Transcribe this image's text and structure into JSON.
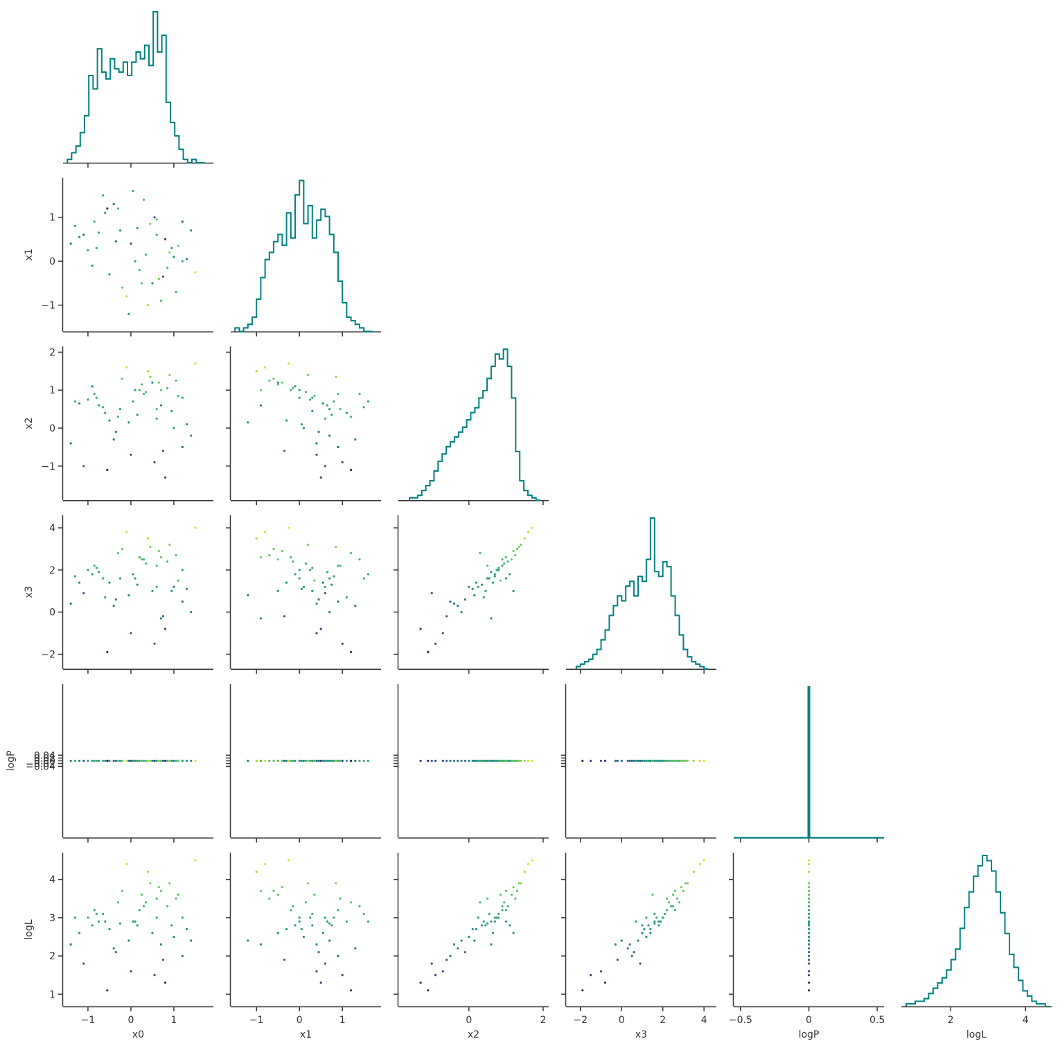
{
  "chart_data": {
    "type": "corner",
    "hist_color": "#008080",
    "colormap": [
      "#440154",
      "#3b528b",
      "#21918c",
      "#5ec962",
      "#fde725"
    ],
    "color_by": "logL",
    "variables": [
      {
        "name": "x0",
        "lim": [
          -1.58,
          1.92
        ],
        "xticks": [
          {
            "value": -1,
            "label": "−1"
          },
          0,
          1
        ],
        "yticks": [],
        "hist": {
          "bins": [
            -1.48,
            -1.38,
            -1.28,
            -1.18,
            -1.08,
            -0.98,
            -0.88,
            -0.78,
            -0.68,
            -0.58,
            -0.48,
            -0.38,
            -0.28,
            -0.18,
            -0.08,
            0.02,
            0.12,
            0.22,
            0.32,
            0.42,
            0.52,
            0.62,
            0.72,
            0.82,
            0.92,
            1.02,
            1.12,
            1.22,
            1.32,
            1.42,
            1.52,
            1.62,
            1.72
          ],
          "counts": [
            1,
            3,
            5,
            9,
            14,
            26,
            22,
            34,
            27,
            25,
            31,
            28,
            27,
            30,
            26,
            30,
            33,
            31,
            35,
            29,
            45,
            33,
            38,
            18,
            12,
            8,
            4,
            1,
            0,
            1,
            0,
            0
          ]
        },
        "values": [
          -0.8,
          0.5,
          1.2,
          -0.3,
          0.1,
          0.7,
          -1.1,
          0.9,
          -0.5,
          0.3,
          1.4,
          -0.9,
          0.6,
          0.0,
          -0.2,
          1.0,
          -1.3,
          0.4,
          0.8,
          -0.6,
          0.2,
          1.1,
          -0.4,
          0.65,
          -0.75,
          1.3,
          -0.1,
          0.55,
          -1.0,
          0.85,
          0.15,
          -0.35,
          1.05,
          -0.65,
          0.35,
          0.75,
          -1.2,
          0.45,
          -0.05,
          1.2,
          -0.55,
          0.25,
          0.95,
          -0.85,
          0.6,
          1.5,
          -1.4,
          0.05,
          0.7,
          -0.25
        ]
      },
      {
        "name": "x1",
        "lim": [
          -1.6,
          1.9
        ],
        "xticks": [
          {
            "value": -1,
            "label": "−1"
          },
          0,
          1
        ],
        "yticks": [
          {
            "value": -1,
            "label": "−1"
          },
          0,
          1
        ],
        "hist": {
          "bins": [
            -1.5,
            -1.4,
            -1.3,
            -1.2,
            -1.1,
            -1.0,
            -0.9,
            -0.8,
            -0.7,
            -0.6,
            -0.5,
            -0.4,
            -0.3,
            -0.2,
            -0.1,
            0.0,
            0.1,
            0.2,
            0.3,
            0.4,
            0.5,
            0.6,
            0.7,
            0.8,
            0.9,
            1.0,
            1.1,
            1.2,
            1.3,
            1.4,
            1.5,
            1.6,
            1.7
          ],
          "counts": [
            1,
            0,
            1,
            2,
            4,
            9,
            15,
            20,
            22,
            25,
            27,
            24,
            33,
            26,
            38,
            42,
            30,
            35,
            26,
            31,
            34,
            32,
            27,
            22,
            14,
            8,
            4,
            3,
            2,
            1,
            0,
            0
          ]
        },
        "values": [
          0.3,
          -0.5,
          0.9,
          1.2,
          0.0,
          -0.9,
          0.6,
          0.2,
          -0.3,
          1.4,
          0.7,
          -0.1,
          0.95,
          0.4,
          -0.6,
          0.1,
          0.8,
          -1.0,
          0.5,
          1.1,
          -0.2,
          0.35,
          1.3,
          -0.4,
          0.65,
          0.05,
          -0.8,
          1.0,
          0.25,
          -0.15,
          0.75,
          0.45,
          -0.7,
          1.5,
          0.15,
          -0.35,
          0.55,
          0.85,
          -1.2,
          0.0,
          1.2,
          -0.5,
          0.3,
          0.9,
          0.6,
          -0.25,
          0.4,
          1.6,
          -0.9,
          0.7
        ]
      },
      {
        "name": "x2",
        "lim": [
          -1.9,
          2.15
        ],
        "xticks": [
          0,
          2
        ],
        "yticks": [
          {
            "value": -1,
            "label": "−1"
          },
          0,
          1,
          2
        ],
        "hist": {
          "bins": [
            -1.6,
            -1.49,
            -1.38,
            -1.27,
            -1.16,
            -1.05,
            -0.94,
            -0.83,
            -0.72,
            -0.61,
            -0.5,
            -0.39,
            -0.28,
            -0.17,
            -0.06,
            0.05,
            0.16,
            0.27,
            0.38,
            0.49,
            0.6,
            0.71,
            0.82,
            0.93,
            1.04,
            1.15,
            1.26,
            1.37,
            1.48,
            1.59,
            1.7,
            1.81,
            1.92
          ],
          "counts": [
            1,
            1,
            2,
            4,
            6,
            8,
            12,
            16,
            19,
            22,
            24,
            26,
            28,
            30,
            33,
            36,
            38,
            42,
            45,
            50,
            55,
            60,
            58,
            62,
            55,
            42,
            20,
            8,
            4,
            2,
            1,
            0
          ]
        },
        "values": [
          0.8,
          1.2,
          -0.5,
          0.3,
          1.0,
          0.6,
          -1.0,
          1.4,
          0.2,
          0.9,
          -0.2,
          1.1,
          0.5,
          -0.7,
          1.3,
          0.0,
          0.7,
          1.5,
          -1.3,
          0.4,
          1.0,
          0.85,
          -0.3,
          1.2,
          0.6,
          0.1,
          1.6,
          -0.9,
          0.75,
          1.05,
          0.35,
          -0.1,
          1.25,
          0.55,
          0.95,
          -0.6,
          0.65,
          1.35,
          0.15,
          0.8,
          -1.1,
          1.15,
          0.45,
          0.9,
          0.25,
          1.7,
          -0.4,
          0.7,
          1.0,
          0.5
        ]
      },
      {
        "name": "x3",
        "lim": [
          -2.7,
          4.6
        ],
        "xticks": [
          {
            "value": -2,
            "label": "−2"
          },
          0,
          2,
          4
        ],
        "yticks": [
          {
            "value": -2,
            "label": "−2"
          },
          0,
          2,
          4
        ],
        "hist": {
          "bins": [
            -2.2,
            -2.0,
            -1.8,
            -1.6,
            -1.4,
            -1.2,
            -1.0,
            -0.8,
            -0.6,
            -0.4,
            -0.2,
            0.0,
            0.2,
            0.4,
            0.6,
            0.8,
            1.0,
            1.2,
            1.4,
            1.6,
            1.8,
            2.0,
            2.2,
            2.4,
            2.6,
            2.8,
            3.0,
            3.2,
            3.4,
            3.6,
            3.8,
            4.0,
            4.2
          ],
          "counts": [
            1,
            2,
            3,
            4,
            6,
            8,
            12,
            16,
            22,
            26,
            30,
            28,
            34,
            36,
            30,
            38,
            36,
            45,
            62,
            40,
            38,
            44,
            42,
            30,
            22,
            14,
            8,
            5,
            3,
            2,
            1,
            0
          ]
        },
        "values": [
          2.1,
          1.0,
          0.5,
          2.8,
          1.6,
          -0.3,
          0.9,
          3.2,
          1.4,
          2.5,
          0.0,
          1.8,
          2.2,
          -1.0,
          3.0,
          1.2,
          1.7,
          3.5,
          -0.8,
          0.7,
          2.6,
          1.5,
          0.3,
          2.9,
          1.9,
          1.1,
          3.8,
          -1.5,
          2.0,
          2.4,
          1.3,
          0.6,
          2.7,
          1.6,
          2.3,
          -0.2,
          1.4,
          3.1,
          0.8,
          2.0,
          -1.9,
          2.5,
          1.0,
          2.2,
          1.2,
          4.0,
          0.4,
          1.8,
          2.6,
          1.6
        ]
      },
      {
        "name": "logP",
        "lim": [
          -0.55,
          0.55
        ],
        "xticks": [
          {
            "value": -0.5,
            "label": "−0.5"
          },
          0.0,
          0.5
        ],
        "yticks": [
          {
            "value": -0.04,
            "label": "−0.04"
          },
          {
            "value": -0.02,
            "label": "−0.02"
          },
          {
            "value": 0,
            "label": "0.00"
          },
          0.02,
          0.04
        ],
        "hist": {
          "bins": [
            -0.55,
            -0.005,
            0.005,
            0.55
          ],
          "counts": [
            0,
            2000,
            0
          ]
        },
        "values": [
          0,
          0,
          0,
          0,
          0,
          0,
          0,
          0,
          0,
          0,
          0,
          0,
          0,
          0,
          0,
          0,
          0,
          0,
          0,
          0,
          0,
          0,
          0,
          0,
          0,
          0,
          0,
          0,
          0,
          0,
          0,
          0,
          0,
          0,
          0,
          0,
          0,
          0,
          0,
          0,
          0,
          0,
          0,
          0,
          0,
          0,
          0,
          0,
          0,
          0
        ]
      },
      {
        "name": "logL",
        "lim": [
          0.68,
          4.7
        ],
        "xticks": [
          2,
          4
        ],
        "yticks": [
          1,
          2,
          3,
          4
        ],
        "hist": {
          "bins": [
            0.81,
            0.93,
            1.05,
            1.17,
            1.29,
            1.41,
            1.53,
            1.65,
            1.77,
            1.89,
            2.01,
            2.13,
            2.25,
            2.37,
            2.49,
            2.61,
            2.73,
            2.85,
            2.97,
            3.09,
            3.21,
            3.33,
            3.45,
            3.57,
            3.69,
            3.81,
            3.93,
            4.05,
            4.17,
            4.29,
            4.41,
            4.53,
            4.65
          ],
          "counts": [
            1,
            1,
            2,
            2,
            3,
            5,
            7,
            9,
            11,
            14,
            18,
            22,
            30,
            38,
            44,
            50,
            54,
            58,
            56,
            52,
            44,
            36,
            28,
            20,
            15,
            10,
            6,
            4,
            2,
            1,
            1,
            0
          ]
        },
        "values": [
          3.1,
          2.6,
          2.0,
          3.4,
          2.9,
          2.3,
          1.8,
          3.9,
          2.7,
          3.3,
          2.4,
          2.8,
          3.5,
          1.6,
          3.7,
          2.5,
          3.0,
          4.2,
          1.3,
          2.9,
          3.2,
          3.6,
          2.2,
          3.8,
          2.9,
          2.7,
          4.4,
          1.5,
          3.0,
          3.3,
          2.8,
          2.1,
          3.5,
          3.1,
          3.4,
          1.9,
          2.6,
          3.9,
          2.4,
          3.0,
          1.1,
          3.6,
          2.8,
          3.2,
          3.0,
          4.5,
          2.3,
          2.9,
          3.7,
          2.85
        ]
      }
    ]
  }
}
